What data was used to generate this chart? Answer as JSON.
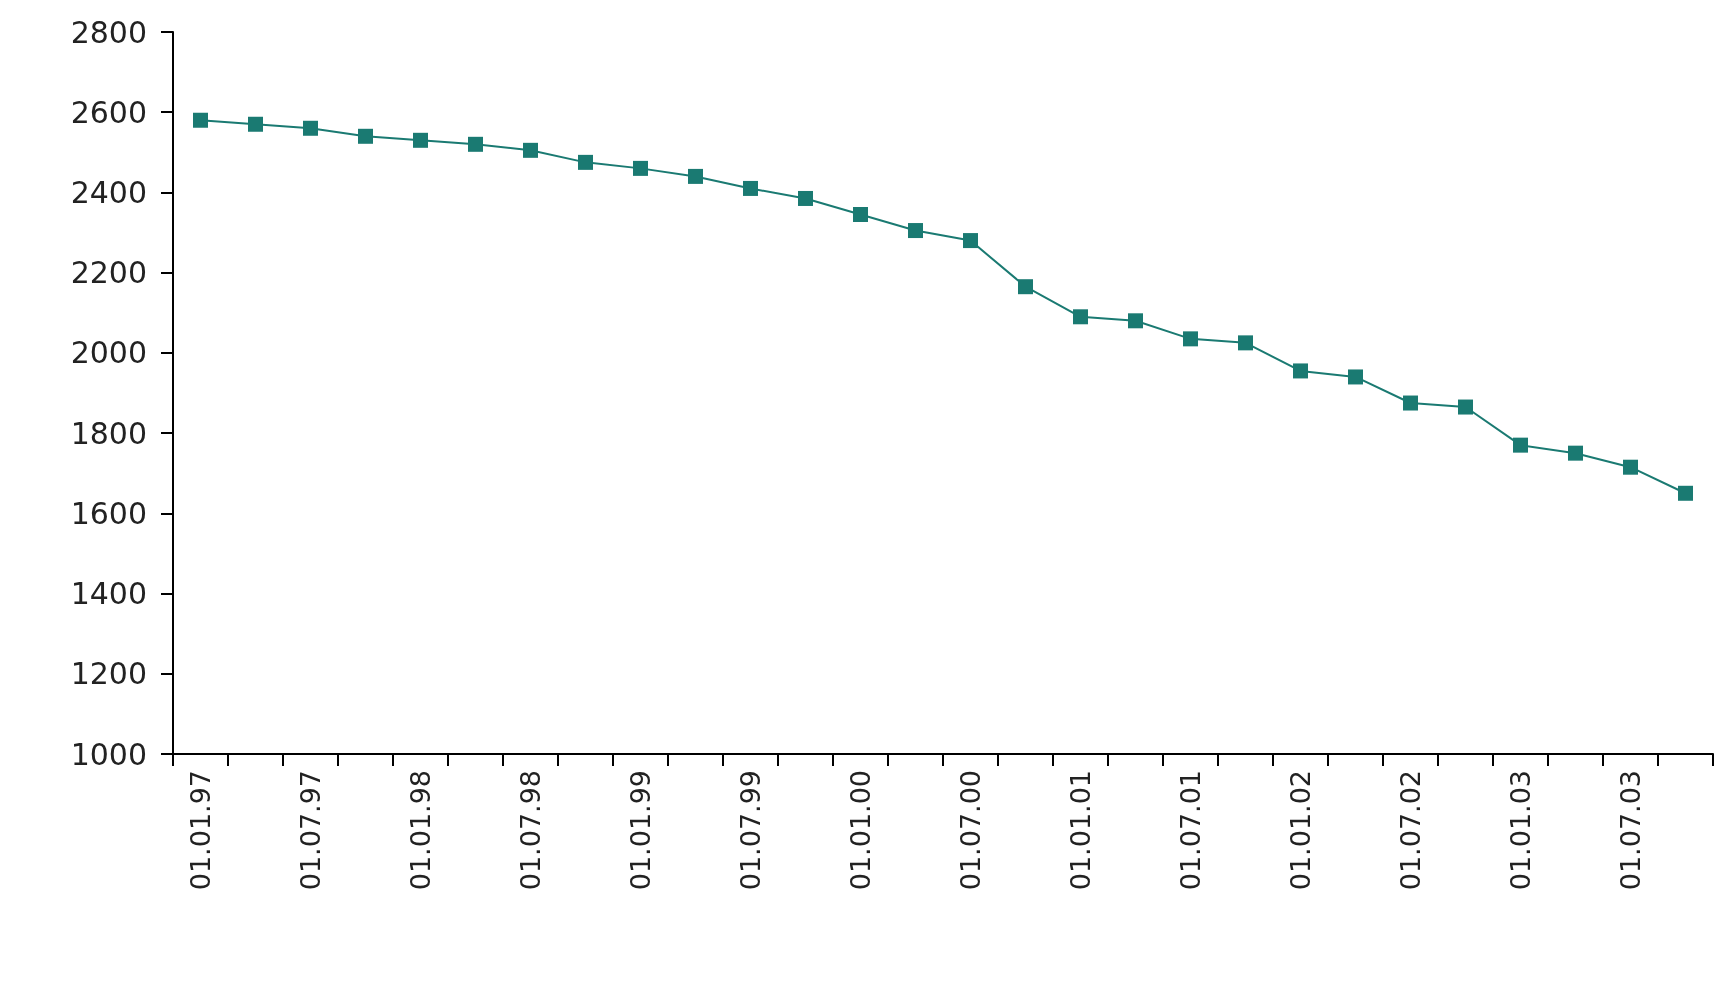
{
  "chart_data": {
    "type": "line",
    "categories": [
      "01.01.97",
      null,
      "01.07.97",
      null,
      "01.01.98",
      null,
      "01.07.98",
      null,
      "01.01.99",
      null,
      "01.07.99",
      null,
      "01.01.00",
      null,
      "01.07.00",
      null,
      "01.01.01",
      null,
      "01.07.01",
      null,
      "01.01.02",
      null,
      "01.07.02",
      null,
      "01.01.03",
      null,
      "01.07.03",
      null
    ],
    "series": [
      {
        "color": "#1a7a72",
        "values": [
          2580,
          2570,
          2560,
          2540,
          2530,
          2520,
          2505,
          2475,
          2460,
          2440,
          2410,
          2385,
          2345,
          2305,
          2280,
          2165,
          2090,
          2080,
          2035,
          2025,
          1955,
          1940,
          1875,
          1865,
          1770,
          1750,
          1715,
          1650
        ]
      }
    ],
    "ylim": [
      1000,
      2800
    ],
    "yticks": [
      1000,
      1200,
      1400,
      1600,
      1800,
      2000,
      2200,
      2400,
      2600,
      2800
    ],
    "marker": "square"
  }
}
